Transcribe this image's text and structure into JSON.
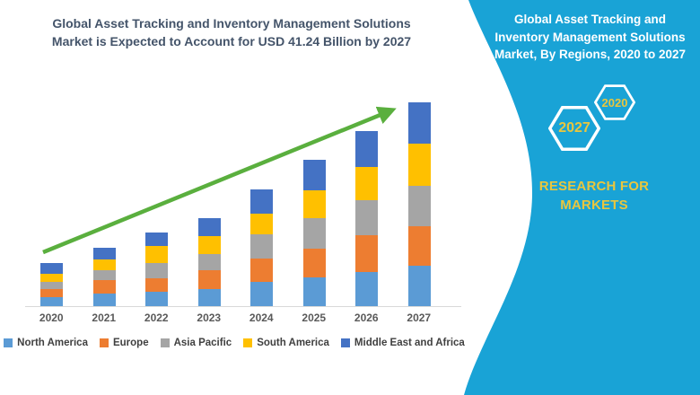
{
  "colors": {
    "accent_teal": "#19a3d6",
    "gold": "#e9c63e",
    "title_text": "#44546a",
    "axis_text": "#595959",
    "legend_text": "#404040",
    "trend_arrow_green": "#5aaf3e",
    "axis_line": "#d9d9d9"
  },
  "chart_data": {
    "type": "bar",
    "stacked": true,
    "title": "Global Asset Tracking and Inventory Management Solutions Market is Expected to Account for USD 41.24 Billion by 2027",
    "unit": "USD Billion",
    "categories": [
      "2020",
      "2021",
      "2022",
      "2023",
      "2024",
      "2025",
      "2026",
      "2027"
    ],
    "series": [
      {
        "name": "North America",
        "color": "#5b9bd5",
        "values": [
          1.9,
          2.6,
          3.0,
          3.4,
          4.9,
          5.9,
          7.0,
          8.2
        ]
      },
      {
        "name": "Europe",
        "color": "#ed7d31",
        "values": [
          1.5,
          2.6,
          2.6,
          3.8,
          4.7,
          5.8,
          7.3,
          8.0
        ]
      },
      {
        "name": "Asia Pacific",
        "color": "#a5a5a5",
        "values": [
          1.6,
          2.1,
          3.2,
          3.3,
          4.9,
          6.2,
          7.1,
          8.2
        ]
      },
      {
        "name": "South America",
        "color": "#ffc000",
        "values": [
          1.6,
          2.1,
          3.3,
          3.6,
          4.2,
          5.6,
          6.8,
          8.5
        ]
      },
      {
        "name": "Middle East and Africa",
        "color": "#4472c4",
        "values": [
          2.2,
          2.4,
          2.8,
          3.8,
          5.0,
          6.2,
          7.3,
          8.34
        ]
      }
    ],
    "totals": [
      8.8,
      11.8,
      14.9,
      17.9,
      23.7,
      29.7,
      35.5,
      41.24
    ],
    "ylim": [
      0,
      45
    ],
    "xlabel": "",
    "ylabel": "",
    "gridlines": false,
    "legend_position": "bottom",
    "annotations": [
      "green upward trend arrow from 2020 to 2027"
    ]
  },
  "sidebar": {
    "background": "#19a3d6",
    "heading": "Global Asset Tracking and Inventory Management Solutions Market, By Regions, 2020 to 2027",
    "hexagons": [
      {
        "label": "2020"
      },
      {
        "label": "2027"
      }
    ],
    "brand": {
      "text": "RESEARCH FOR MARKETS"
    }
  }
}
